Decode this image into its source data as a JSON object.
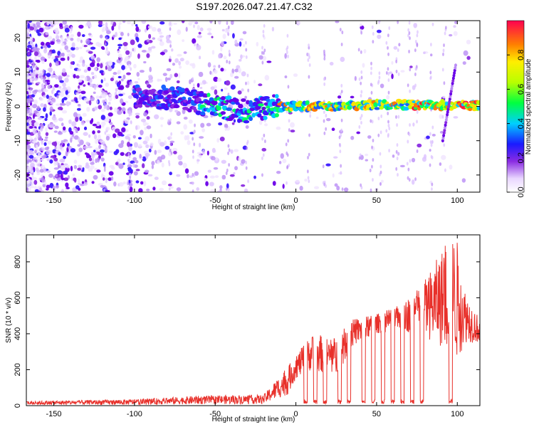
{
  "title": "S197.2026.047.21.47.C32",
  "chart_data": [
    {
      "type": "heatmap",
      "name": "spectrogram",
      "xlabel": "Height of straight line (km)",
      "ylabel": "Frequency (Hz)",
      "xlim": [
        -167,
        114
      ],
      "ylim": [
        -25,
        25
      ],
      "xticks": [
        -150,
        -100,
        -50,
        0,
        50,
        100
      ],
      "yticks": [
        -20,
        -10,
        0,
        10,
        20
      ],
      "colorbar": {
        "label": "Normalized spectral amplitude",
        "range": [
          0,
          1
        ],
        "ticks": [
          0.0,
          0.2,
          0.4,
          0.6,
          0.8
        ]
      },
      "ridge": [
        {
          "x": -90,
          "y": 3
        },
        {
          "x": -70,
          "y": 2
        },
        {
          "x": -50,
          "y": 0
        },
        {
          "x": -30,
          "y": -1.5
        },
        {
          "x": -15,
          "y": 0
        },
        {
          "x": 0,
          "y": 0
        },
        {
          "x": 25,
          "y": 0
        },
        {
          "x": 50,
          "y": 0.5
        },
        {
          "x": 75,
          "y": 0.5
        },
        {
          "x": 100,
          "y": 0.3
        },
        {
          "x": 114,
          "y": 0.3
        }
      ]
    },
    {
      "type": "line",
      "name": "snr",
      "xlabel": "Height of straight line (km)",
      "ylabel": "SNR (10 * v/v)",
      "xlim": [
        -167,
        114
      ],
      "ylim": [
        0,
        950
      ],
      "xticks": [
        -150,
        -100,
        -50,
        0,
        50,
        100
      ],
      "yticks": [
        0,
        200,
        400,
        600,
        800
      ],
      "color": "#e8302a",
      "envelope": [
        {
          "x": -167,
          "lo": 5,
          "hi": 25
        },
        {
          "x": -100,
          "lo": 5,
          "hi": 35
        },
        {
          "x": -60,
          "lo": 8,
          "hi": 55
        },
        {
          "x": -20,
          "lo": 10,
          "hi": 60
        },
        {
          "x": -5,
          "lo": 60,
          "hi": 220
        },
        {
          "x": 0,
          "lo": 150,
          "hi": 280
        },
        {
          "x": 10,
          "lo": 200,
          "hi": 400
        },
        {
          "x": 25,
          "lo": 160,
          "hi": 380
        },
        {
          "x": 35,
          "lo": 330,
          "hi": 480
        },
        {
          "x": 50,
          "lo": 400,
          "hi": 510
        },
        {
          "x": 65,
          "lo": 420,
          "hi": 560
        },
        {
          "x": 80,
          "lo": 380,
          "hi": 700
        },
        {
          "x": 95,
          "lo": 300,
          "hi": 940
        },
        {
          "x": 100,
          "lo": 250,
          "hi": 920
        },
        {
          "x": 105,
          "lo": 350,
          "hi": 640
        },
        {
          "x": 114,
          "lo": 350,
          "hi": 480
        }
      ],
      "dropouts": [
        6,
        12,
        18,
        27,
        33,
        42,
        48,
        54,
        60,
        66,
        72,
        78,
        96
      ]
    }
  ]
}
